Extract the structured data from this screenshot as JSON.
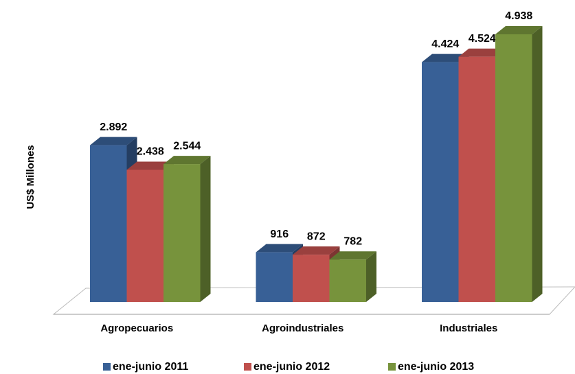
{
  "chart_data": {
    "type": "bar3d",
    "y_label": "US$ Millones",
    "categories": [
      "Agropecuarios",
      "Agroindustriales",
      "Industriales"
    ],
    "series": [
      {
        "name": "ene-junio 2011",
        "color": "#386096",
        "values": [
          2892,
          916,
          4424
        ],
        "value_labels": [
          "2.892",
          "916",
          "4.424"
        ]
      },
      {
        "name": "ene-junio 2012",
        "color": "#c0504d",
        "values": [
          2438,
          872,
          4524
        ],
        "value_labels": [
          "2.438",
          "872",
          "4.524"
        ]
      },
      {
        "name": "ene-junio 2013",
        "color": "#77933c",
        "values": [
          2544,
          782,
          4938
        ],
        "value_labels": [
          "2.544",
          "782",
          "4.938"
        ]
      }
    ],
    "legend": "bottom"
  }
}
